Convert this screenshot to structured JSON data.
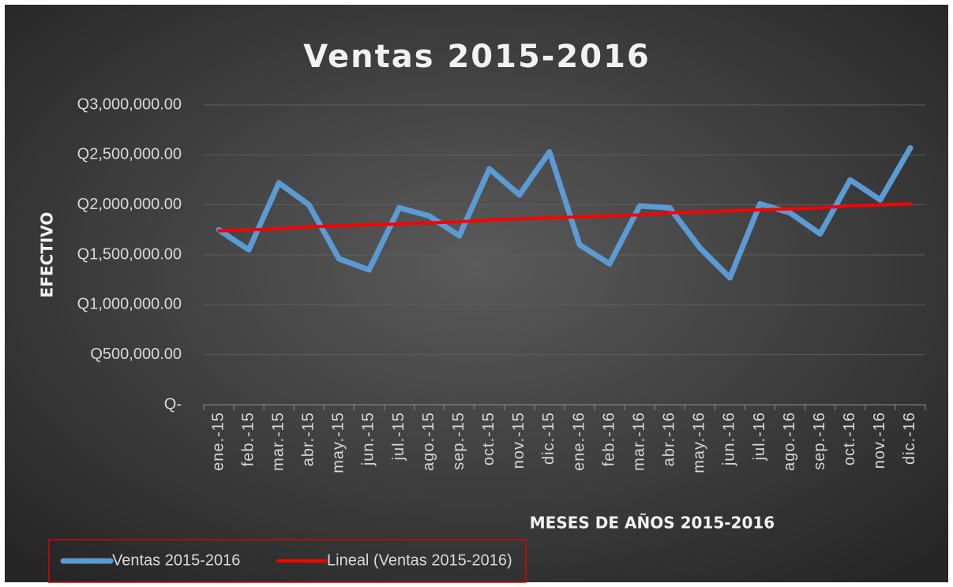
{
  "chart_data": {
    "type": "line",
    "title": "Ventas 2015-2016",
    "y_label": "EFECTIVO",
    "x_label": "MESES DE AÑOS 2015-2016",
    "categories": [
      "ene.-15",
      "feb.-15",
      "mar.-15",
      "abr.-15",
      "may.-15",
      "jun.-15",
      "jul.-15",
      "ago.-15",
      "sep.-15",
      "oct.-15",
      "nov.-15",
      "dic.-15",
      "ene.-16",
      "feb.-16",
      "mar.-16",
      "abr.-16",
      "may.-16",
      "jun.-16",
      "jul.-16",
      "ago.-16",
      "sep.-16",
      "oct.-16",
      "nov.-16",
      "dic.-16"
    ],
    "series": [
      {
        "name": "Ventas 2015-2016",
        "color": "#5b9bd5",
        "values": [
          1750000,
          1550000,
          2220000,
          2000000,
          1460000,
          1350000,
          1970000,
          1890000,
          1690000,
          2360000,
          2100000,
          2530000,
          1600000,
          1410000,
          1990000,
          1970000,
          1570000,
          1270000,
          2010000,
          1920000,
          1710000,
          2250000,
          2050000,
          2570000
        ]
      },
      {
        "name": "Lineal (Ventas 2015-2016)",
        "color": "#ff0000",
        "values": [
          1740000,
          1750000,
          1760000,
          1780000,
          1790000,
          1800000,
          1810000,
          1820000,
          1830000,
          1850000,
          1860000,
          1870000,
          1880000,
          1890000,
          1900000,
          1920000,
          1930000,
          1940000,
          1950000,
          1960000,
          1970000,
          1990000,
          2000000,
          2010000
        ]
      }
    ],
    "ylim": [
      0,
      3000000
    ],
    "yticks": [
      {
        "value": 0,
        "label": "Q-"
      },
      {
        "value": 500000,
        "label": "Q500,000.00"
      },
      {
        "value": 1000000,
        "label": "Q1,000,000.00"
      },
      {
        "value": 1500000,
        "label": "Q1,500,000.00"
      },
      {
        "value": 2000000,
        "label": "Q2,000,000.00"
      },
      {
        "value": 2500000,
        "label": "Q2,500,000.00"
      },
      {
        "value": 3000000,
        "label": "Q3,000,000.00"
      }
    ],
    "grid": true,
    "legend": "bottom-left"
  }
}
